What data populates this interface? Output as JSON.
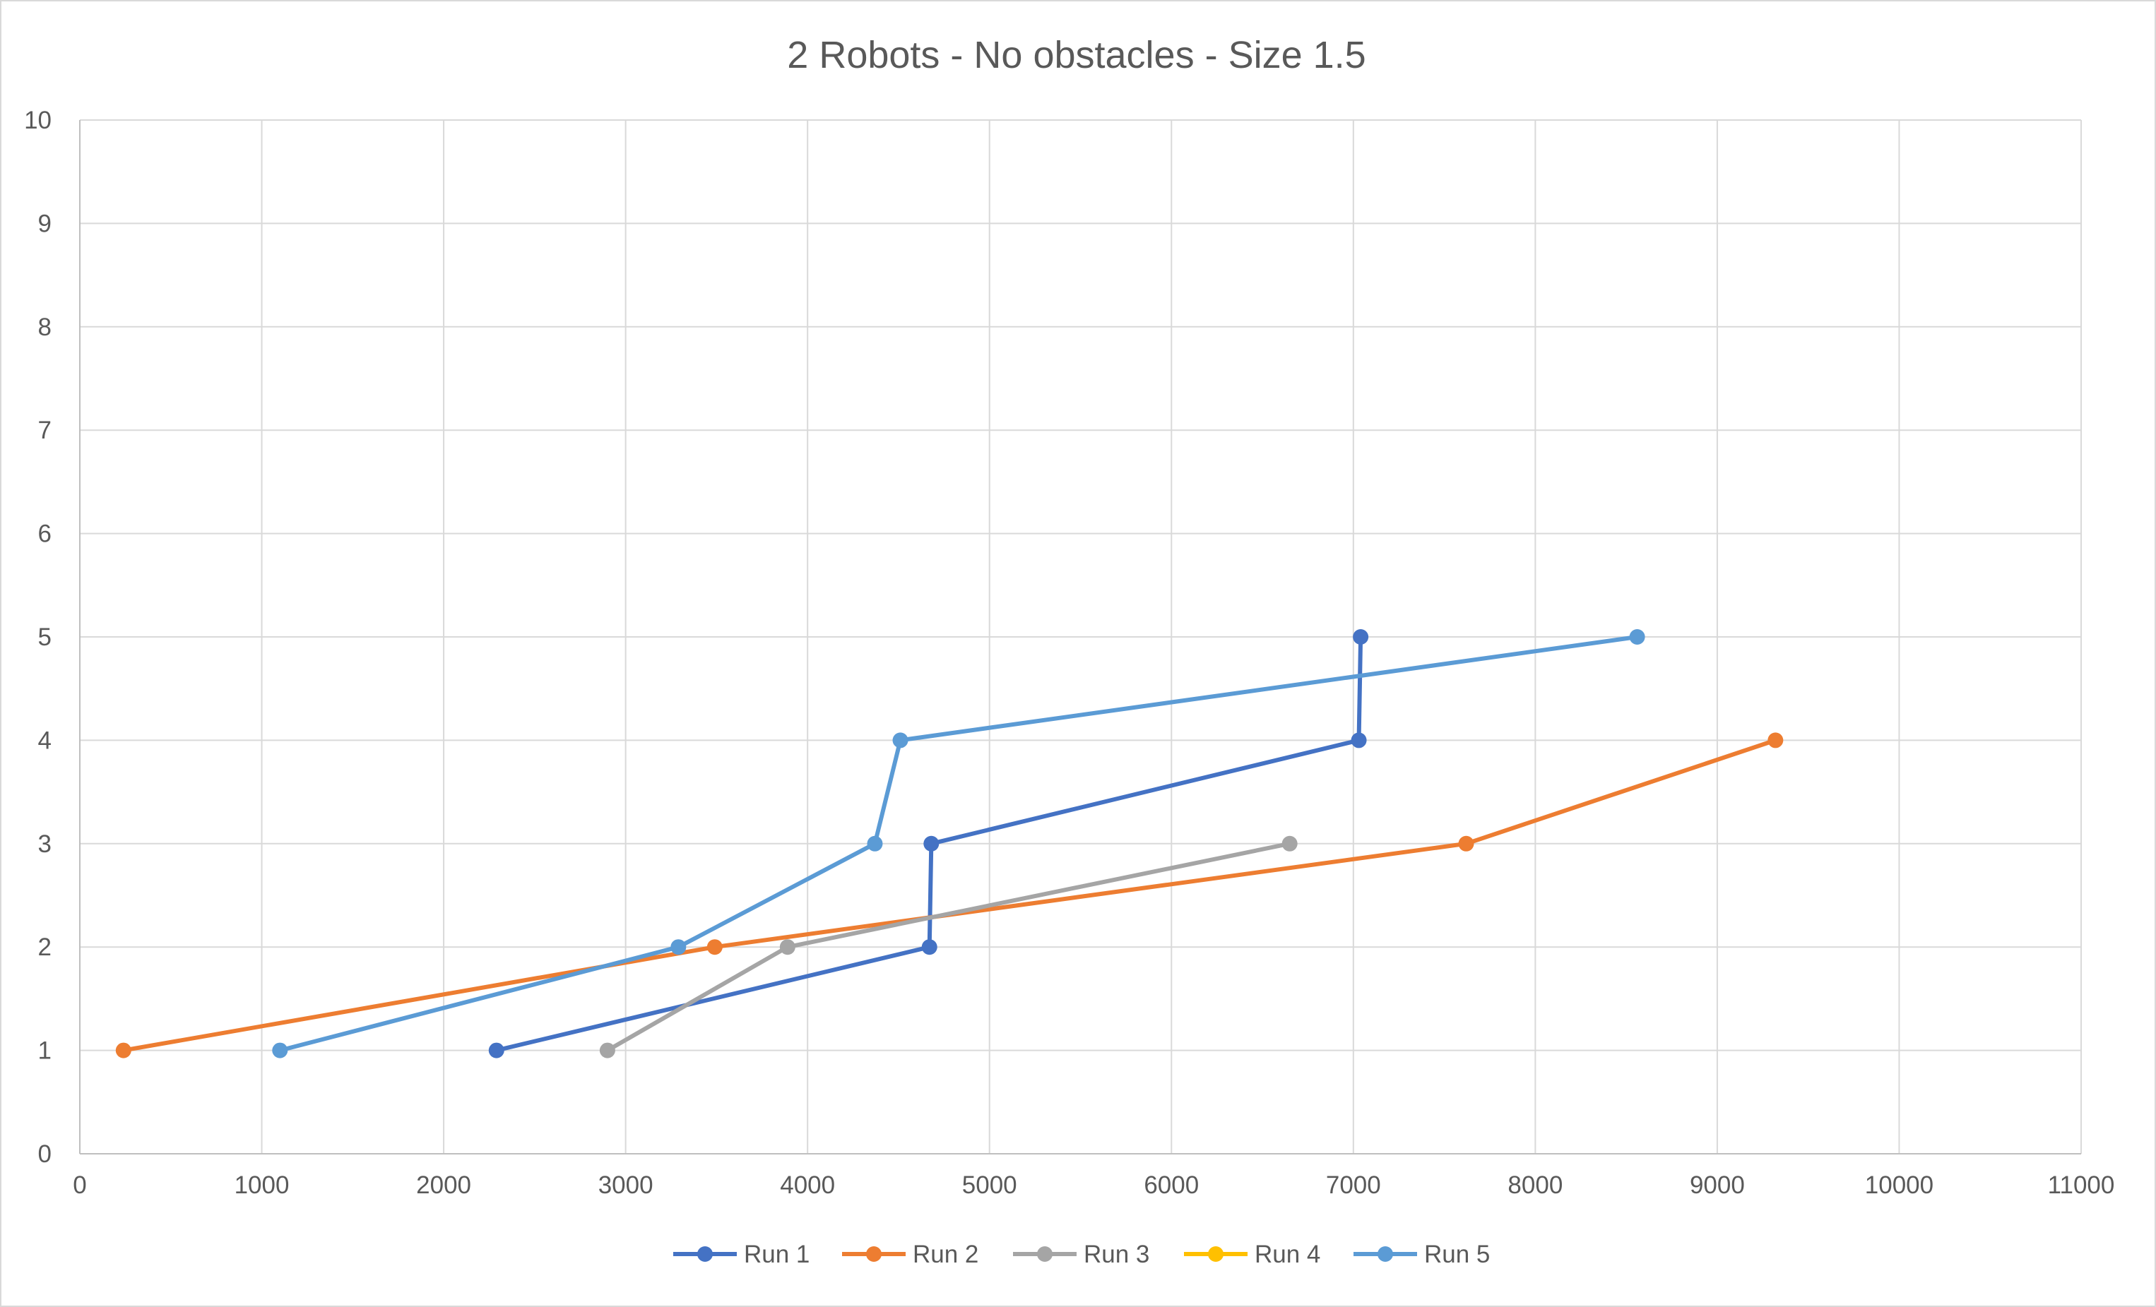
{
  "chart_data": {
    "type": "scatter",
    "title": "2 Robots - No obstacles - Size 1.5",
    "xlabel": "",
    "ylabel": "",
    "xlim": [
      0,
      11000
    ],
    "ylim": [
      0,
      10
    ],
    "x_ticks": [
      0,
      1000,
      2000,
      3000,
      4000,
      5000,
      6000,
      7000,
      8000,
      9000,
      10000,
      11000
    ],
    "y_ticks": [
      0,
      1,
      2,
      3,
      4,
      5,
      6,
      7,
      8,
      9,
      10
    ],
    "grid": true,
    "legend": "bottom",
    "series": [
      {
        "name": "Run 1",
        "color": "#4472c4",
        "points": [
          [
            2290,
            1
          ],
          [
            4670,
            2
          ],
          [
            4680,
            3
          ],
          [
            7030,
            4
          ],
          [
            7040,
            5
          ]
        ]
      },
      {
        "name": "Run 2",
        "color": "#ed7d31",
        "points": [
          [
            240,
            1
          ],
          [
            3490,
            2
          ],
          [
            7620,
            3
          ],
          [
            9320,
            4
          ]
        ]
      },
      {
        "name": "Run 3",
        "color": "#a5a5a5",
        "points": [
          [
            2900,
            1
          ],
          [
            3890,
            2
          ],
          [
            6650,
            3
          ]
        ]
      },
      {
        "name": "Run 4",
        "color": "#ffc000",
        "points": []
      },
      {
        "name": "Run 5",
        "color": "#5b9bd5",
        "points": [
          [
            1100,
            1
          ],
          [
            3290,
            2
          ],
          [
            4370,
            3
          ],
          [
            4510,
            4
          ],
          [
            8560,
            5
          ]
        ]
      }
    ]
  }
}
